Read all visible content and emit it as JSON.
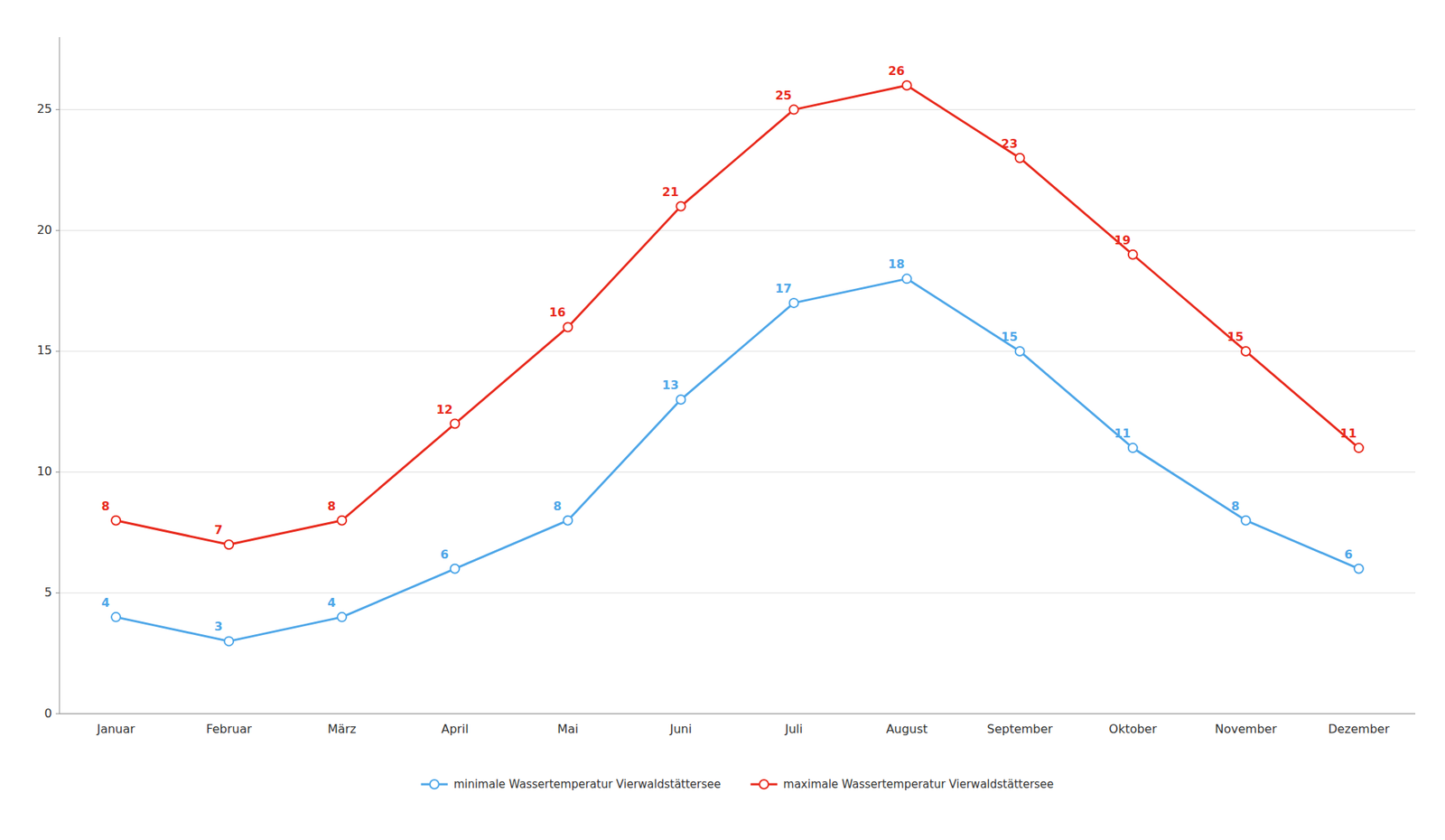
{
  "chart_data": {
    "type": "line",
    "categories": [
      "Januar",
      "Februar",
      "März",
      "April",
      "Mai",
      "Juni",
      "Juli",
      "August",
      "September",
      "Oktober",
      "November",
      "Dezember"
    ],
    "series": [
      {
        "name": "minimale Wassertemperatur Vierwaldstättersee",
        "color": "#4DA6E8",
        "marker": "circle",
        "values": [
          4,
          3,
          4,
          6,
          8,
          13,
          17,
          18,
          15,
          11,
          8,
          6
        ]
      },
      {
        "name": "maximale Wassertemperatur Vierwaldstättersee",
        "color": "#E8291C",
        "marker": "circle",
        "values": [
          8,
          7,
          8,
          12,
          16,
          21,
          25,
          26,
          23,
          19,
          15,
          11
        ]
      }
    ],
    "ylim": [
      0,
      28
    ],
    "yticks": [
      0,
      5,
      10,
      15,
      20,
      25
    ],
    "grid": true,
    "legend": "bottom",
    "data_labels": true
  }
}
